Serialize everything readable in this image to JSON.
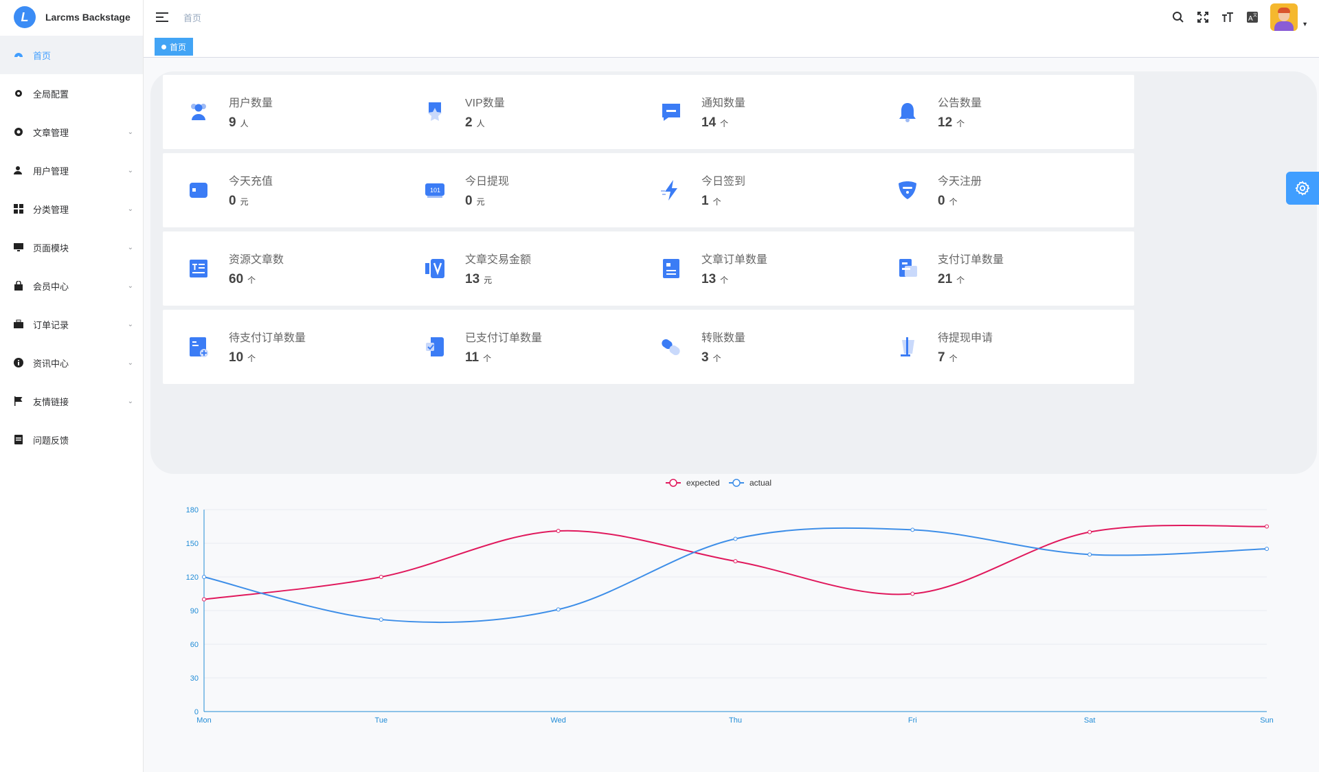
{
  "app": {
    "logo_letter": "L",
    "name": "Larcms Backstage"
  },
  "header": {
    "breadcrumb": "首页",
    "icons": [
      "search-icon",
      "fullscreen-icon",
      "font-size-icon",
      "language-icon"
    ]
  },
  "tags": [
    {
      "label": "首页",
      "active": true
    }
  ],
  "sidebar": {
    "items": [
      {
        "label": "首页",
        "icon": "dashboard-icon",
        "active": true,
        "expandable": false
      },
      {
        "label": "全局配置",
        "icon": "gear-icon",
        "active": false,
        "expandable": false
      },
      {
        "label": "文章管理",
        "icon": "article-icon",
        "active": false,
        "expandable": true
      },
      {
        "label": "用户管理",
        "icon": "user-icon",
        "active": false,
        "expandable": true
      },
      {
        "label": "分类管理",
        "icon": "category-icon",
        "active": false,
        "expandable": true
      },
      {
        "label": "页面模块",
        "icon": "monitor-icon",
        "active": false,
        "expandable": true
      },
      {
        "label": "会员中心",
        "icon": "shopping-bag-icon",
        "active": false,
        "expandable": true
      },
      {
        "label": "订单记录",
        "icon": "briefcase-icon",
        "active": false,
        "expandable": true
      },
      {
        "label": "资讯中心",
        "icon": "info-icon",
        "active": false,
        "expandable": true
      },
      {
        "label": "友情链接",
        "icon": "flag-icon",
        "active": false,
        "expandable": true
      },
      {
        "label": "问题反馈",
        "icon": "feedback-icon",
        "active": false,
        "expandable": false
      }
    ]
  },
  "stats": [
    {
      "title": "用户数量",
      "value": "9",
      "unit": "人",
      "icon": "users-icon"
    },
    {
      "title": "VIP数量",
      "value": "2",
      "unit": "人",
      "icon": "vip-star-icon"
    },
    {
      "title": "通知数量",
      "value": "14",
      "unit": "个",
      "icon": "message-icon"
    },
    {
      "title": "公告数量",
      "value": "12",
      "unit": "个",
      "icon": "bell-icon"
    },
    {
      "title": "今天充值",
      "value": "0",
      "unit": "元",
      "icon": "wallet-icon"
    },
    {
      "title": "今日提现",
      "value": "0",
      "unit": "元",
      "icon": "cash-icon"
    },
    {
      "title": "今日签到",
      "value": "1",
      "unit": "个",
      "icon": "lightning-icon"
    },
    {
      "title": "今天注册",
      "value": "0",
      "unit": "个",
      "icon": "shield-icon"
    },
    {
      "title": "资源文章数",
      "value": "60",
      "unit": "个",
      "icon": "document-icon"
    },
    {
      "title": "文章交易金额",
      "value": "13",
      "unit": "元",
      "icon": "money-icon"
    },
    {
      "title": "文章订单数量",
      "value": "13",
      "unit": "个",
      "icon": "order-icon"
    },
    {
      "title": "支付订单数量",
      "value": "21",
      "unit": "个",
      "icon": "payment-icon"
    },
    {
      "title": "待支付订单数量",
      "value": "10",
      "unit": "个",
      "icon": "pending-order-icon"
    },
    {
      "title": "已支付订单数量",
      "value": "11",
      "unit": "个",
      "icon": "paid-order-icon"
    },
    {
      "title": "转账数量",
      "value": "3",
      "unit": "个",
      "icon": "transfer-icon"
    },
    {
      "title": "待提现申请",
      "value": "7",
      "unit": "个",
      "icon": "withdraw-request-icon"
    }
  ],
  "chart_data": {
    "type": "line",
    "categories": [
      "Mon",
      "Tue",
      "Wed",
      "Thu",
      "Fri",
      "Sat",
      "Sun"
    ],
    "series": [
      {
        "name": "expected",
        "color": "#e0185c",
        "values": [
          100,
          120,
          161,
          134,
          105,
          160,
          165
        ]
      },
      {
        "name": "actual",
        "color": "#3d8ee8",
        "values": [
          120,
          82,
          91,
          154,
          162,
          140,
          145
        ]
      }
    ],
    "ylim": [
      0,
      180
    ],
    "yticks": [
      0,
      30,
      60,
      90,
      120,
      150,
      180
    ],
    "smooth": true,
    "grid": true,
    "legend": "top-center"
  },
  "colors": {
    "accent": "#409eff",
    "icon_blue": "#3b7cf5"
  }
}
